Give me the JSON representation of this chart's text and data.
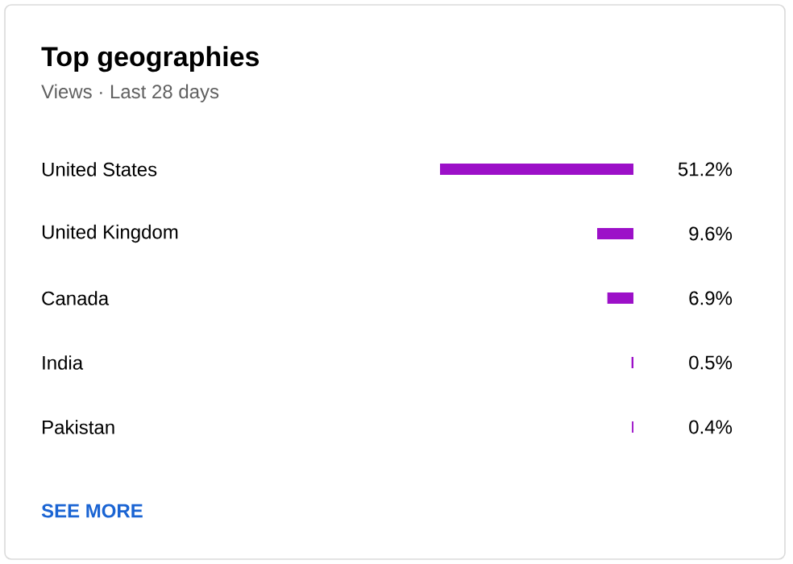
{
  "chart_data": {
    "type": "bar",
    "orientation": "horizontal",
    "title": "Top geographies",
    "subtitle": "Views · Last 28 days",
    "categories": [
      "United States",
      "United Kingdom",
      "Canada",
      "India",
      "Pakistan"
    ],
    "values": [
      51.2,
      9.6,
      6.9,
      0.5,
      0.4
    ],
    "value_labels": [
      "51.2%",
      "9.6%",
      "6.9%",
      "0.5%",
      "0.4%"
    ],
    "color": "#9c10c8",
    "tick_labels": "y",
    "annotations": [
      "SEE MORE"
    ]
  }
}
